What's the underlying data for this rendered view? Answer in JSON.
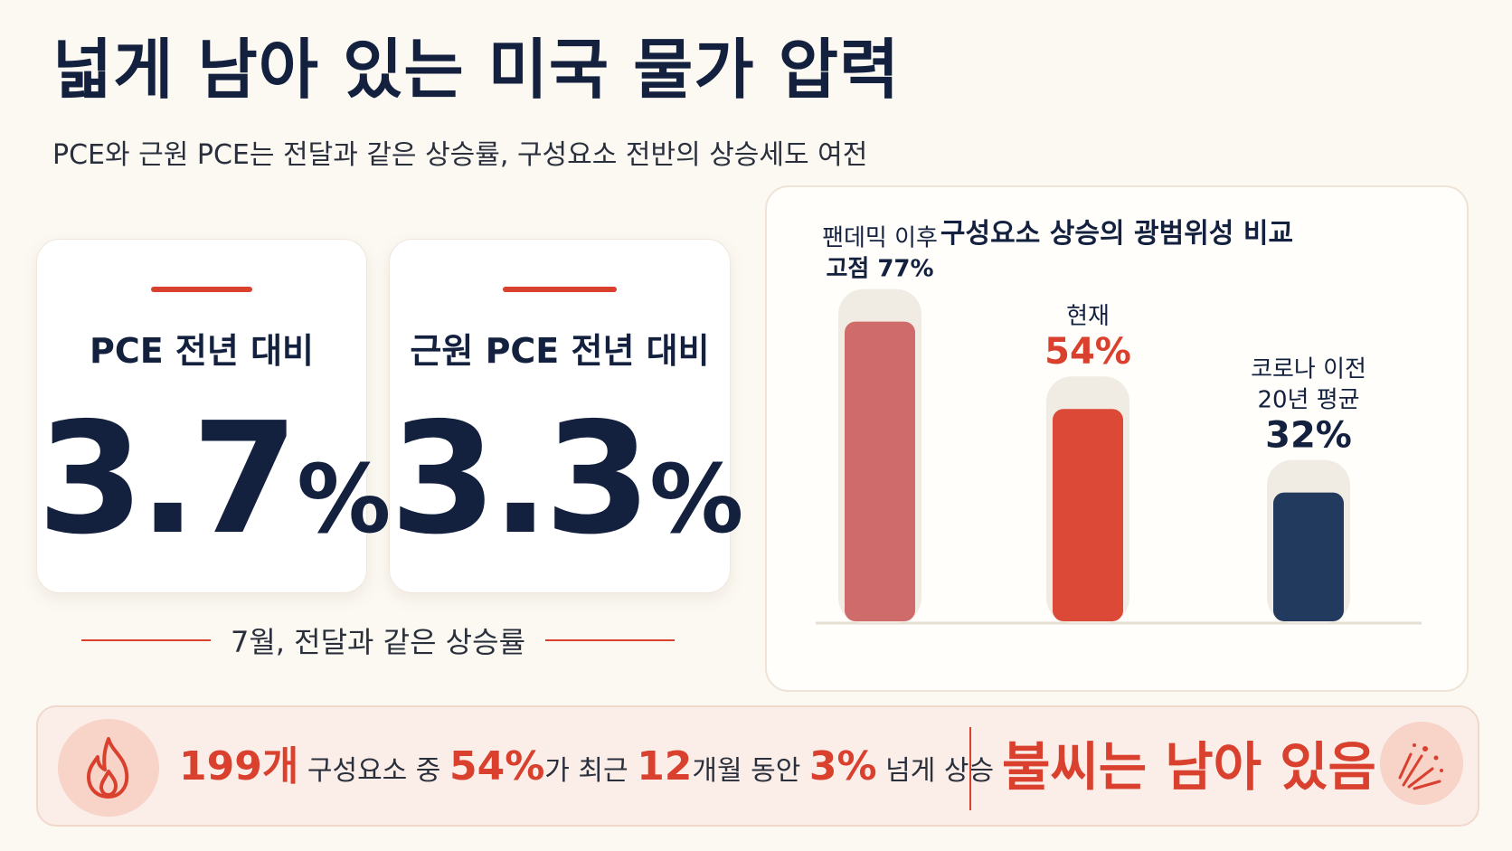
{
  "header": {
    "title": "넓게 남아 있는 미국 물가 압력",
    "subtitle": "PCE와 근원 PCE는 전달과 같은 상승률, 구성요소 전반의 상승세도 여전"
  },
  "stats": [
    {
      "label": "PCE 전년 대비",
      "value": "3.7",
      "unit": "%"
    },
    {
      "label": "근원 PCE 전년 대비",
      "value": "3.3",
      "unit": "%"
    }
  ],
  "month_note": "7월, 전달과 같은 상승률",
  "chart_data": {
    "type": "bar",
    "title": "구성요소 상승의 광범위성 비교",
    "categories": [
      "팬데믹 이후 고점 77%",
      "현재 54%",
      "코로나 이전 20년 평균 32%"
    ],
    "values": [
      77,
      54,
      32
    ],
    "labels": [
      {
        "lines": [
          "팬데믹 이후",
          "고점 77%"
        ]
      },
      {
        "lines": [
          "현재"
        ],
        "value_label": "54%"
      },
      {
        "lines": [
          "코로나 이전",
          "20년 평균"
        ],
        "value_label": "32%"
      }
    ],
    "unit": "%",
    "ylim": [
      0,
      100
    ],
    "colors": [
      "#d06b6b",
      "#dc4a37",
      "#223a5e"
    ],
    "track_color": "#f1ece3",
    "grid": false
  },
  "footer": {
    "count": "199개",
    "text1": "구성요소 중",
    "share": "54%",
    "text2": "가 최근",
    "months": "12",
    "text3": "개월 동안",
    "threshold": "3%",
    "text4": "넘게 상승",
    "conclusion": "불씨는 남아 있음",
    "left_icon": "fire-icon",
    "right_icon": "spark-icon"
  }
}
